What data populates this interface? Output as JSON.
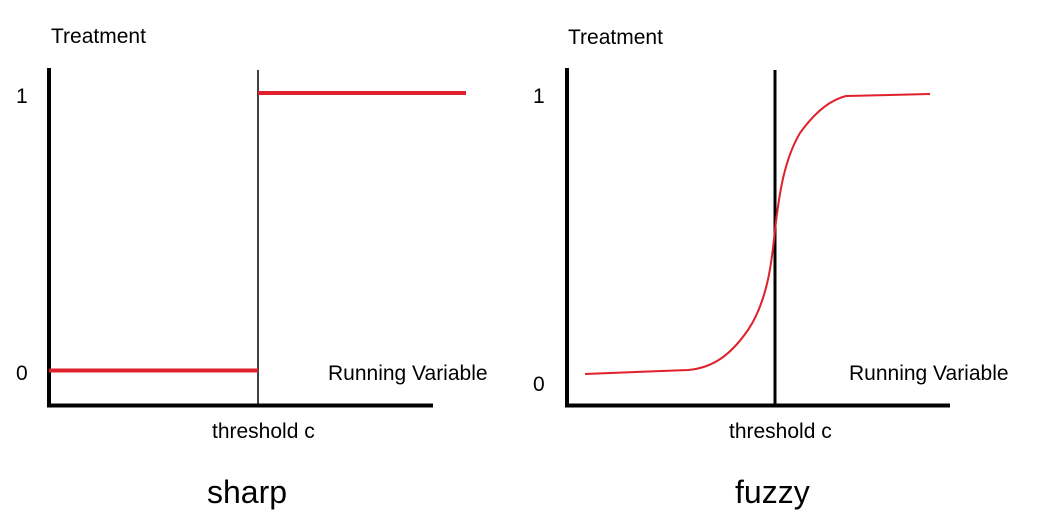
{
  "colors": {
    "curve": "#e0202a",
    "axis": "#000000",
    "background": "#ffffff"
  },
  "sharp": {
    "y_label": "Treatment",
    "y_tick_1": "1",
    "y_tick_0": "0",
    "x_label": "Running Variable",
    "threshold_label": "threshold c",
    "caption": "sharp"
  },
  "fuzzy": {
    "y_label": "Treatment",
    "y_tick_1": "1",
    "y_tick_0": "0",
    "x_label": "Running Variable",
    "threshold_label": "threshold c",
    "caption": "fuzzy"
  }
}
